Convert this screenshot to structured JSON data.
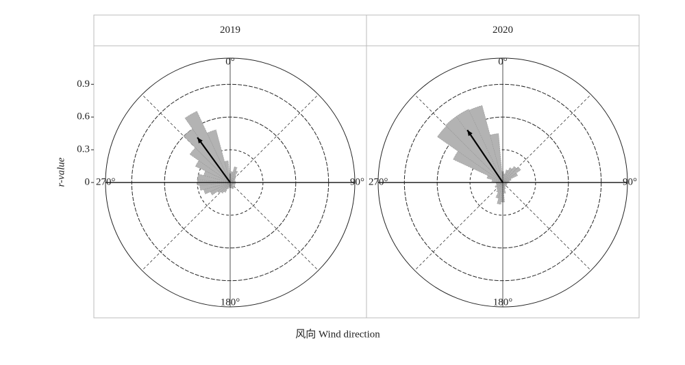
{
  "ylabel": "r-value",
  "xlabel": "风向 Wind direction",
  "chart_data": [
    {
      "type": "rose",
      "title": "2019",
      "x": [
        0,
        10,
        20,
        30,
        40,
        50,
        60,
        70,
        80,
        90,
        100,
        110,
        120,
        130,
        140,
        150,
        160,
        170,
        180,
        190,
        200,
        210,
        220,
        230,
        240,
        250,
        260,
        270,
        280,
        290,
        300,
        310,
        320,
        330,
        340,
        350
      ],
      "values": [
        0.08,
        0.1,
        0.15,
        0.12,
        0.08,
        0.06,
        0.05,
        0.04,
        0.05,
        0.03,
        0.05,
        0.04,
        0.05,
        0.03,
        0.04,
        0.06,
        0.06,
        0.05,
        0.05,
        0.04,
        0.06,
        0.1,
        0.12,
        0.14,
        0.2,
        0.25,
        0.28,
        0.3,
        0.3,
        0.25,
        0.35,
        0.45,
        0.6,
        0.72,
        0.5,
        0.2
      ],
      "color": "#b3b3b3",
      "mean_vector": {
        "angle": 324,
        "length": 0.51
      },
      "ylim": [
        0,
        1.14
      ],
      "yticks": [
        0,
        0.3,
        0.6,
        0.9
      ],
      "xticks": [
        {
          "value": 0,
          "label": "0°"
        },
        {
          "value": 90,
          "label": "90°"
        },
        {
          "value": 180,
          "label": "180°"
        },
        {
          "value": 270,
          "label": "270°"
        }
      ]
    },
    {
      "type": "rose",
      "title": "2020",
      "x": [
        0,
        10,
        20,
        30,
        40,
        50,
        60,
        70,
        80,
        90,
        100,
        110,
        120,
        130,
        140,
        150,
        160,
        170,
        180,
        190,
        200,
        210,
        220,
        230,
        240,
        250,
        260,
        270,
        280,
        290,
        300,
        310,
        320,
        330,
        340,
        350
      ],
      "values": [
        0.1,
        0.08,
        0.12,
        0.15,
        0.18,
        0.2,
        0.15,
        0.08,
        0.06,
        0.04,
        0.04,
        0.04,
        0.04,
        0.04,
        0.04,
        0.04,
        0.06,
        0.1,
        0.18,
        0.2,
        0.15,
        0.1,
        0.08,
        0.07,
        0.08,
        0.06,
        0.06,
        0.06,
        0.1,
        0.15,
        0.5,
        0.73,
        0.74,
        0.74,
        0.73,
        0.45
      ],
      "color": "#b3b3b3",
      "mean_vector": {
        "angle": 326,
        "length": 0.58
      },
      "ylim": [
        0,
        1.14
      ],
      "yticks": [
        0,
        0.3,
        0.6,
        0.9
      ],
      "xticks": [
        {
          "value": 0,
          "label": "0°"
        },
        {
          "value": 90,
          "label": "90°"
        },
        {
          "value": 180,
          "label": "180°"
        },
        {
          "value": 270,
          "label": "270°"
        }
      ]
    }
  ]
}
